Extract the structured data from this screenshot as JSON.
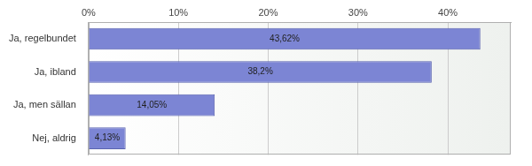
{
  "chart_data": {
    "type": "bar",
    "orientation": "horizontal",
    "categories": [
      "Ja, regelbundet",
      "Ja, ibland",
      "Ja, men sällan",
      "Nej, aldrig"
    ],
    "values": [
      43.62,
      38.2,
      14.05,
      4.13
    ],
    "value_labels": [
      "43,62%",
      "38,2%",
      "14,05%",
      "4,13%"
    ],
    "data_labels": true,
    "color": "#7c85d4",
    "xlim": [
      0,
      47
    ],
    "xticks": [
      {
        "value": 0,
        "label": "0%"
      },
      {
        "value": 10,
        "label": "10%"
      },
      {
        "value": 20,
        "label": "20%"
      },
      {
        "value": 30,
        "label": "30%"
      },
      {
        "value": 40,
        "label": "40%"
      }
    ],
    "grid": true
  }
}
